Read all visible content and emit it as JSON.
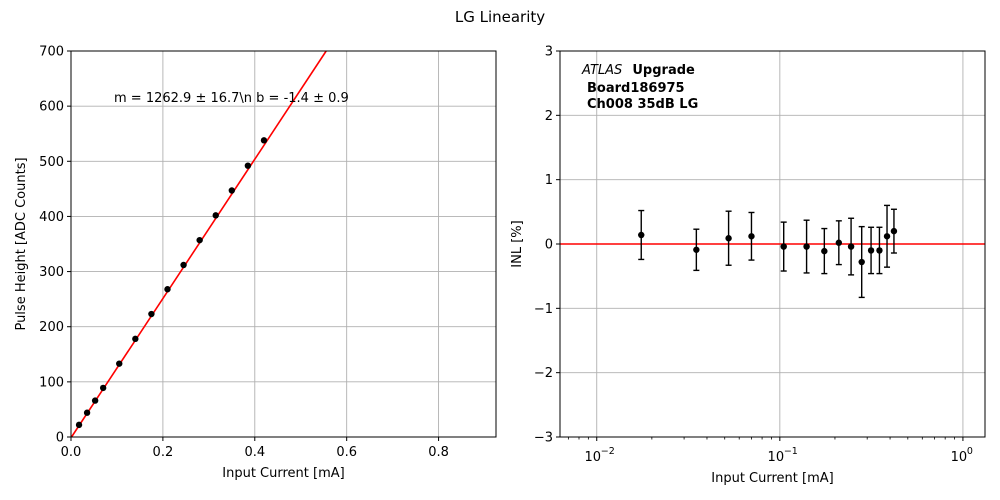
{
  "figure_title": "LG Linearity",
  "chart_data": [
    {
      "type": "scatter",
      "name": "pulse-height-vs-current",
      "xlabel": "Input Current [mA]",
      "ylabel": "Pulse Height [ADC Counts]",
      "xlim": [
        0,
        0.925
      ],
      "ylim": [
        0,
        700
      ],
      "xticks": [
        0,
        0.2,
        0.4,
        0.6,
        0.8
      ],
      "xtick_labels": [
        "0.0",
        "0.2",
        "0.4",
        "0.6",
        "0.8"
      ],
      "yticks": [
        0,
        100,
        200,
        300,
        400,
        500,
        600,
        700
      ],
      "ytick_labels": [
        "0",
        "100",
        "200",
        "300",
        "400",
        "500",
        "600",
        "700"
      ],
      "grid": true,
      "fit_annotation": "m = 1262.9 ± 16.7\\n b = -1.4 ± 0.9",
      "fit": {
        "slope": 1262.9,
        "intercept": -1.4,
        "color": "#ff0000"
      },
      "x": [
        0.0175,
        0.035,
        0.0525,
        0.07,
        0.105,
        0.14,
        0.175,
        0.21,
        0.245,
        0.28,
        0.315,
        0.35,
        0.385,
        0.42
      ],
      "y": [
        22,
        44,
        66,
        89,
        133,
        178,
        223,
        268,
        312,
        357,
        402,
        447,
        492,
        538
      ],
      "marker_color": "#000000"
    },
    {
      "type": "scatter",
      "name": "inl-vs-current",
      "xlabel": "Input Current [mA]",
      "ylabel": "INL [%]",
      "xscale": "log",
      "xlim": [
        0.0063,
        1.32
      ],
      "ylim": [
        -3,
        3
      ],
      "xticks": [
        0.01,
        0.1,
        1
      ],
      "xtick_labels": [
        "10",
        "10",
        "10"
      ],
      "xtick_exponents": [
        "−2",
        "−1",
        "0"
      ],
      "yticks": [
        -3,
        -2,
        -1,
        0,
        1,
        2,
        3
      ],
      "ytick_labels": [
        "−3",
        "−2",
        "−1",
        "0",
        "1",
        "2",
        "3"
      ],
      "grid": true,
      "reference_line": {
        "y": 0,
        "color": "#ff0000"
      },
      "label_lines": [
        "ATLAS",
        "Upgrade",
        "Board186975",
        "Ch008 35dB LG"
      ],
      "x": [
        0.0175,
        0.035,
        0.0525,
        0.07,
        0.105,
        0.14,
        0.175,
        0.21,
        0.245,
        0.28,
        0.315,
        0.35,
        0.385,
        0.42
      ],
      "y": [
        0.14,
        -0.09,
        0.09,
        0.12,
        -0.04,
        -0.04,
        -0.11,
        0.02,
        -0.04,
        -0.28,
        -0.1,
        -0.1,
        0.12,
        0.2
      ],
      "yerr": [
        0.38,
        0.32,
        0.42,
        0.37,
        0.38,
        0.41,
        0.35,
        0.34,
        0.44,
        0.55,
        0.36,
        0.36,
        0.48,
        0.34
      ],
      "marker_color": "#000000"
    }
  ]
}
